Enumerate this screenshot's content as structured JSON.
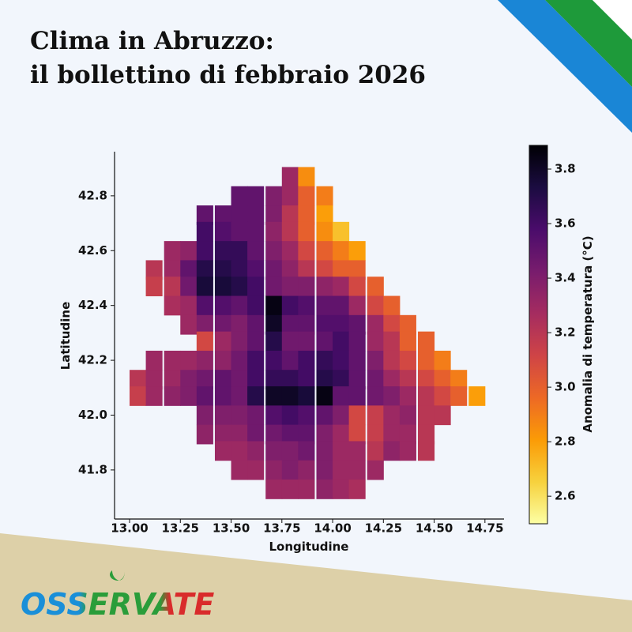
{
  "header": {
    "title_line1": "Clima in Abruzzo:",
    "title_line2": "il bollettino di febbraio 2026"
  },
  "brand": "OSSERVATE",
  "chart_data": {
    "type": "heatmap",
    "xlabel": "Longitudine",
    "ylabel": "Latitudine",
    "colorbar_label": "Anomalia di temperatura (°C)",
    "xlim": [
      12.926,
      14.844
    ],
    "ylim": [
      41.621,
      42.961
    ],
    "xticks": [
      {
        "value": 13,
        "label": "13.00"
      },
      {
        "value": 13.25,
        "label": "13.25"
      },
      {
        "value": 13.5,
        "label": "13.50"
      },
      {
        "value": 13.75,
        "label": "13.75"
      },
      {
        "value": 14,
        "label": "14.00"
      },
      {
        "value": 14.25,
        "label": "14.25"
      },
      {
        "value": 14.5,
        "label": "14.50"
      },
      {
        "value": 14.75,
        "label": "14.75"
      }
    ],
    "yticks": [
      {
        "value": 41.8,
        "label": "41.8"
      },
      {
        "value": 42,
        "label": "42.0"
      },
      42.2,
      42.4,
      42.6,
      42.8
    ],
    "zlim": [
      2.499,
      3.887
    ],
    "zticks": [
      2.6,
      2.8,
      {
        "value": 3,
        "label": "3.0"
      },
      3.2,
      3.4,
      3.6,
      3.8
    ],
    "colorscale": [
      "#fcffa4",
      "#f7d13d",
      "#fb9b06",
      "#ed6925",
      "#cf4446",
      "#a52c60",
      "#781c6d",
      "#4a0c6b",
      "#1b0c41",
      "#000004"
    ],
    "x": [
      13.04,
      13.12,
      13.21,
      13.29,
      13.37,
      13.46,
      13.54,
      13.62,
      13.71,
      13.79,
      13.87,
      13.96,
      14.04,
      14.12,
      14.21,
      14.29,
      14.37,
      14.46,
      14.54,
      14.62,
      14.71
    ],
    "y": [
      42.87,
      42.8,
      42.73,
      42.67,
      42.6,
      42.53,
      42.47,
      42.4,
      42.33,
      42.27,
      42.2,
      42.13,
      42.07,
      42.0,
      41.93,
      41.87,
      41.8,
      41.73
    ],
    "z": [
      [
        null,
        null,
        null,
        null,
        null,
        null,
        null,
        null,
        null,
        3.3,
        2.85,
        null,
        null,
        null,
        null,
        null,
        null,
        null,
        null,
        null,
        null
      ],
      [
        null,
        null,
        null,
        null,
        null,
        null,
        3.5,
        3.5,
        3.4,
        3.3,
        3.0,
        2.9,
        null,
        null,
        null,
        null,
        null,
        null,
        null,
        null,
        null
      ],
      [
        null,
        null,
        null,
        null,
        3.5,
        3.5,
        3.5,
        3.5,
        3.4,
        3.2,
        3.0,
        2.8,
        null,
        null,
        null,
        null,
        null,
        null,
        null,
        null,
        null
      ],
      [
        null,
        null,
        null,
        null,
        3.6,
        3.55,
        3.5,
        3.5,
        3.35,
        3.2,
        3.0,
        2.85,
        2.7,
        null,
        null,
        null,
        null,
        null,
        null,
        null,
        null
      ],
      [
        null,
        null,
        3.3,
        3.35,
        3.6,
        3.65,
        3.65,
        3.5,
        3.4,
        3.3,
        3.1,
        3.0,
        2.9,
        2.8,
        null,
        null,
        null,
        null,
        null,
        null,
        null
      ],
      [
        null,
        3.2,
        3.3,
        3.5,
        3.7,
        3.7,
        3.65,
        3.55,
        3.45,
        3.35,
        3.2,
        3.1,
        3.0,
        3.0,
        null,
        null,
        null,
        null,
        null,
        null,
        null
      ],
      [
        null,
        3.15,
        3.2,
        3.45,
        3.75,
        3.75,
        3.7,
        3.6,
        3.45,
        3.4,
        3.4,
        3.35,
        3.3,
        3.1,
        3.0,
        null,
        null,
        null,
        null,
        null,
        null
      ],
      [
        null,
        null,
        3.25,
        3.3,
        3.55,
        3.55,
        3.5,
        3.6,
        3.85,
        3.6,
        3.55,
        3.5,
        3.5,
        3.3,
        3.1,
        3.0,
        null,
        null,
        null,
        null,
        null
      ],
      [
        null,
        null,
        null,
        3.3,
        3.4,
        3.45,
        3.4,
        3.5,
        3.8,
        3.5,
        3.5,
        3.55,
        3.55,
        3.5,
        3.3,
        3.1,
        3.0,
        null,
        null,
        null,
        null
      ],
      [
        null,
        null,
        null,
        null,
        3.1,
        3.3,
        3.4,
        3.5,
        3.7,
        3.45,
        3.45,
        3.5,
        3.6,
        3.5,
        3.3,
        3.2,
        3.0,
        3.0,
        null,
        null,
        null
      ],
      [
        null,
        3.3,
        3.3,
        3.3,
        3.35,
        3.35,
        3.45,
        3.6,
        3.6,
        3.5,
        3.6,
        3.65,
        3.6,
        3.5,
        3.4,
        3.2,
        3.1,
        3.0,
        2.9,
        null,
        null
      ],
      [
        3.2,
        3.3,
        3.3,
        3.4,
        3.45,
        3.5,
        3.45,
        3.6,
        3.65,
        3.65,
        3.6,
        3.7,
        3.65,
        3.5,
        3.45,
        3.3,
        3.2,
        3.1,
        3.0,
        2.9,
        null
      ],
      [
        3.15,
        3.3,
        3.35,
        3.4,
        3.5,
        3.5,
        3.45,
        3.7,
        3.8,
        3.8,
        3.75,
        3.85,
        3.5,
        3.5,
        3.45,
        3.4,
        3.3,
        3.2,
        3.1,
        3.0,
        2.8
      ],
      [
        null,
        null,
        null,
        null,
        3.4,
        3.4,
        3.4,
        3.45,
        3.55,
        3.6,
        3.55,
        3.5,
        3.4,
        3.1,
        3.15,
        3.3,
        3.35,
        3.2,
        3.2,
        null,
        null
      ],
      [
        null,
        null,
        null,
        null,
        3.35,
        3.35,
        3.35,
        3.45,
        3.45,
        3.5,
        3.5,
        3.4,
        3.3,
        3.1,
        3.15,
        3.3,
        3.3,
        3.2,
        null,
        null,
        null
      ],
      [
        null,
        null,
        null,
        null,
        null,
        3.3,
        3.3,
        3.35,
        3.4,
        3.4,
        3.45,
        3.4,
        3.3,
        3.3,
        3.2,
        3.35,
        3.3,
        3.2,
        null,
        null,
        null
      ],
      [
        null,
        null,
        null,
        null,
        null,
        null,
        3.3,
        3.3,
        3.35,
        3.4,
        3.35,
        3.4,
        3.3,
        3.3,
        3.3,
        null,
        null,
        null,
        null,
        null,
        null
      ],
      [
        null,
        null,
        null,
        null,
        null,
        null,
        null,
        null,
        3.3,
        3.3,
        3.3,
        3.35,
        3.3,
        3.25,
        null,
        null,
        null,
        null,
        null,
        null,
        null
      ]
    ]
  }
}
